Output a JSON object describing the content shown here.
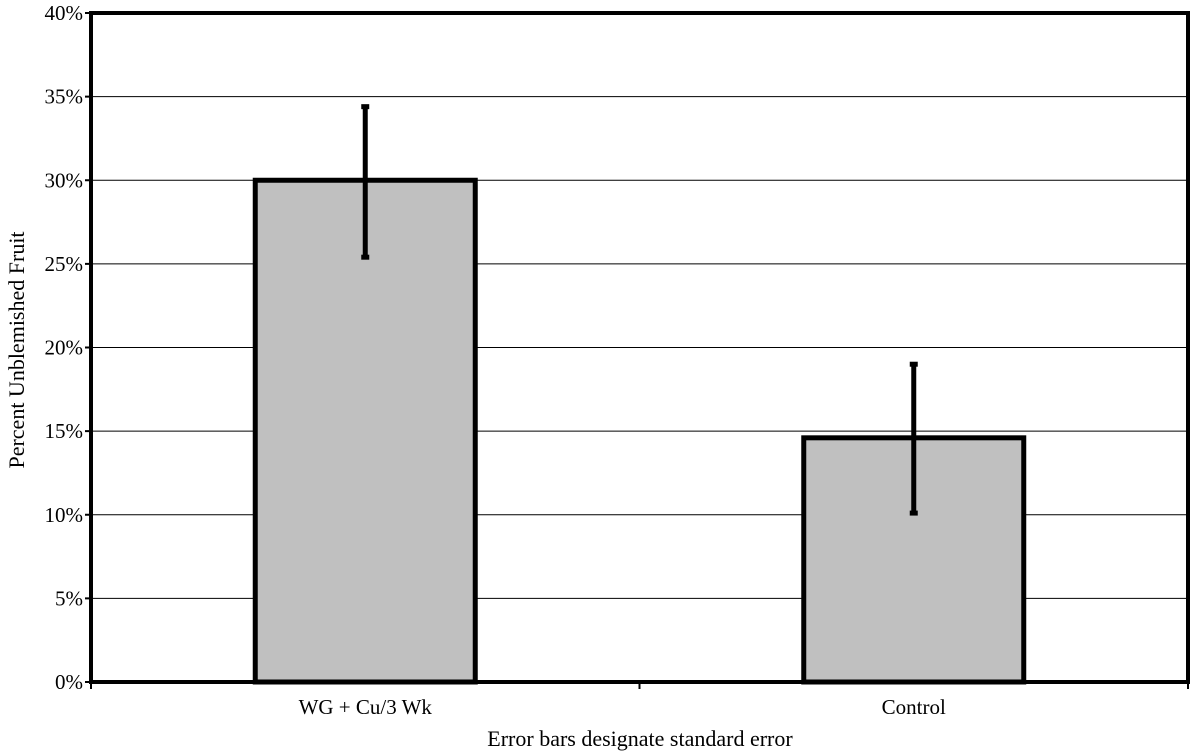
{
  "chart_data": {
    "type": "bar",
    "title": "",
    "xlabel": "Error bars designate standard error",
    "ylabel": "Percent Unblemished Fruit",
    "categories": [
      "WG + Cu/3 Wk",
      "Control"
    ],
    "values": [
      0.3,
      0.146
    ],
    "error_low": [
      0.254,
      0.101
    ],
    "error_high": [
      0.344,
      0.19
    ],
    "ylim": [
      0,
      0.4
    ],
    "yticks": [
      0,
      0.05,
      0.1,
      0.15,
      0.2,
      0.25,
      0.3,
      0.35,
      0.4
    ],
    "ytick_labels": [
      "0%",
      "5%",
      "10%",
      "15%",
      "20%",
      "25%",
      "30%",
      "35%",
      "40%"
    ],
    "grid": true,
    "legend": "none",
    "bar_color": "#c0c0c0",
    "bar_edge_color": "#000000"
  }
}
